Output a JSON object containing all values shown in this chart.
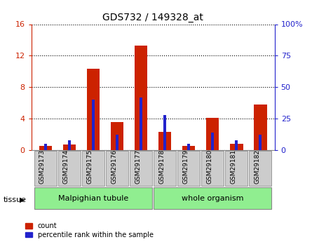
{
  "title": "GDS732 / 149328_at",
  "samples": [
    "GSM29173",
    "GSM29174",
    "GSM29175",
    "GSM29176",
    "GSM29177",
    "GSM29178",
    "GSM29179",
    "GSM29180",
    "GSM29181",
    "GSM29182"
  ],
  "count_values": [
    0.5,
    0.7,
    10.3,
    3.6,
    13.3,
    2.3,
    0.5,
    4.1,
    0.8,
    5.8
  ],
  "percentile_values": [
    5,
    8,
    40,
    12,
    42,
    28,
    5,
    14,
    8,
    12
  ],
  "ylim_left": [
    0,
    16
  ],
  "ylim_right": [
    0,
    100
  ],
  "yticks_left": [
    0,
    4,
    8,
    12,
    16
  ],
  "yticks_right": [
    0,
    25,
    50,
    75,
    100
  ],
  "bar_color": "#cc2200",
  "percentile_color": "#2222cc",
  "tick_color_left": "#cc2200",
  "tick_color_right": "#2222cc",
  "bar_width": 0.55,
  "blue_bar_width": 0.12,
  "tissue_groups": [
    {
      "label": "Malpighian tubule",
      "start": 0,
      "end": 4
    },
    {
      "label": "whole organism",
      "start": 5,
      "end": 9
    }
  ],
  "tissue_color": "#90ee90",
  "sample_box_color": "#cccccc",
  "figsize": [
    4.45,
    3.45
  ],
  "dpi": 100
}
